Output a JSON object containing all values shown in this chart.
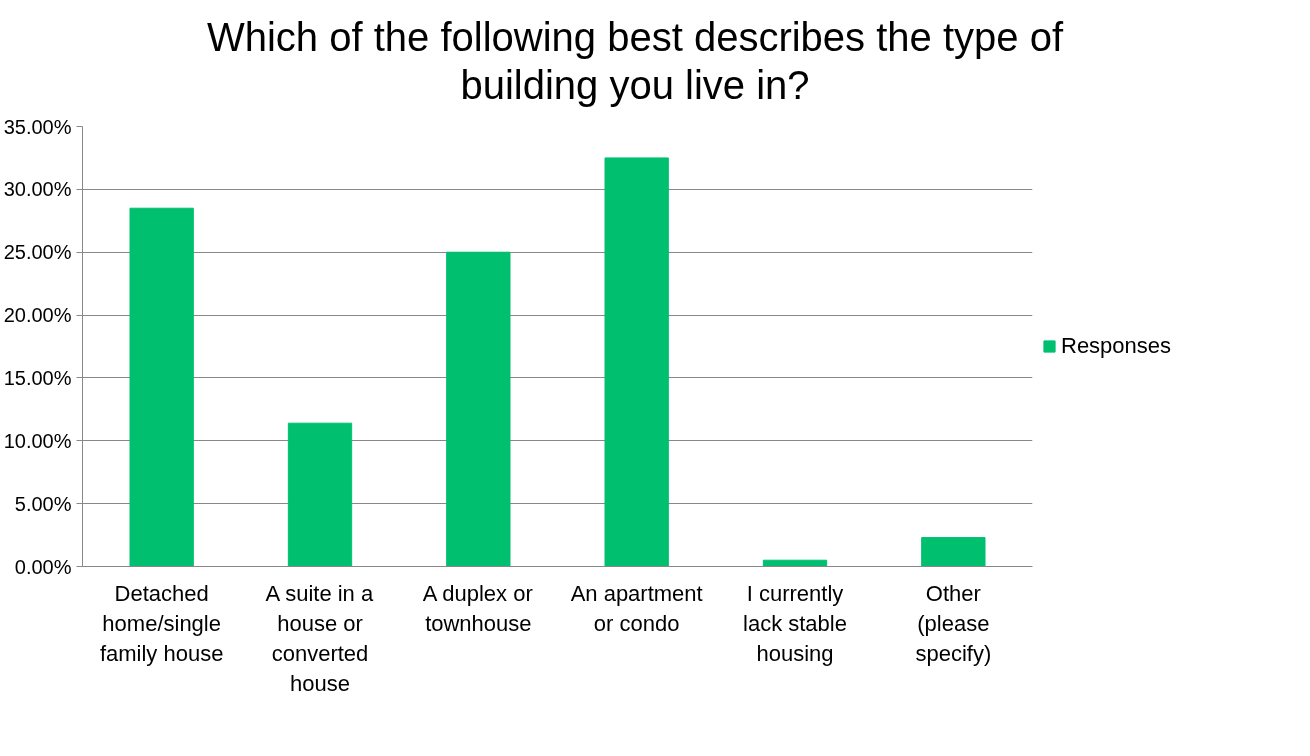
{
  "chart_data": {
    "type": "bar",
    "title": "Which of the following best describes the type of building you live in?",
    "categories": [
      "Detached home/single family house",
      "A suite in a house or converted house",
      "A duplex or townhouse",
      "An apartment or condo",
      "I currently lack stable housing",
      "Other (please specify)"
    ],
    "series": [
      {
        "name": "Responses",
        "color": "#00c070",
        "values": [
          28.5,
          11.4,
          25.0,
          32.5,
          0.5,
          2.3
        ]
      }
    ],
    "ylim": [
      0,
      35
    ],
    "yticks": [
      {
        "value": 0,
        "label": "0.00%"
      },
      {
        "value": 5,
        "label": "5.00%"
      },
      {
        "value": 10,
        "label": "10.00%"
      },
      {
        "value": 15,
        "label": "15.00%"
      },
      {
        "value": 20,
        "label": "20.00%"
      },
      {
        "value": 25,
        "label": "25.00%"
      },
      {
        "value": 30,
        "label": "30.00%"
      },
      {
        "value": 35,
        "label": "35.00%"
      }
    ],
    "grid": "y",
    "legend": "right"
  }
}
